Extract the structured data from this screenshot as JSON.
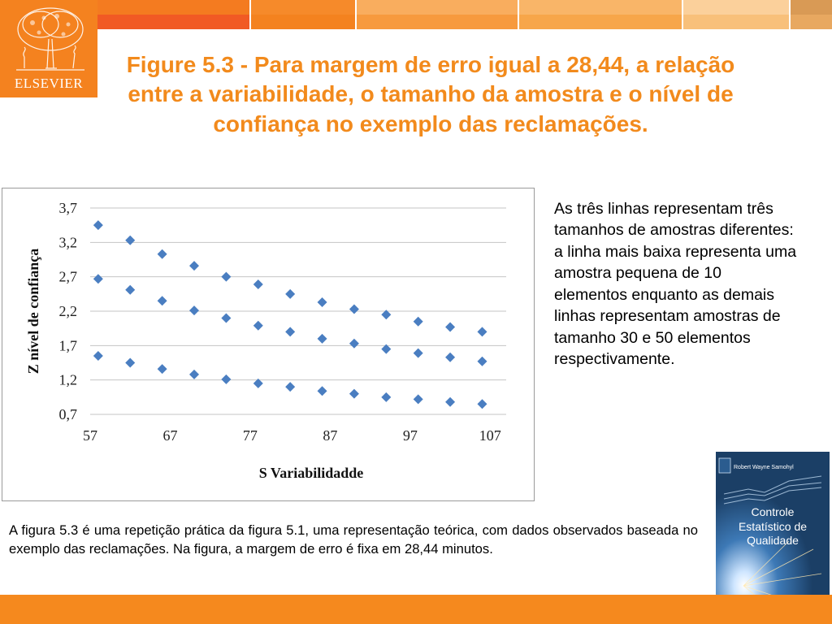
{
  "header": {
    "segments": [
      {
        "color": "#f15a24",
        "inner": "#f47b20"
      },
      {
        "color": "#f4821f",
        "inner": "#f68a2a"
      },
      {
        "color": "#f79a3e",
        "inner": "#f9ad5e"
      },
      {
        "color": "#f7a64a",
        "inner": "#f9b568"
      },
      {
        "color": "#f8c07a",
        "inner": "#fbd09b"
      },
      {
        "color": "#e8a860",
        "inner": "#d99a55"
      }
    ]
  },
  "logo": {
    "text": "ELSEVIER",
    "bg": "#f4821f"
  },
  "title": "Figure 5.3 - Para margem de erro igual a 28,44, a relação entre a variabilidade, o tamanho da amostra e o nível de confiança no exemplo das reclamações.",
  "chart_data": {
    "type": "scatter",
    "xlabel": "S Variabilidadde",
    "ylabel": "Z  nível de confiança",
    "xlim": [
      57,
      109
    ],
    "ylim": [
      0.7,
      3.7
    ],
    "xticks": [
      "57",
      "67",
      "77",
      "87",
      "97",
      "107"
    ],
    "yticks": [
      "0,7",
      "1,2",
      "1,7",
      "2,2",
      "2,7",
      "3,2",
      "3,7"
    ],
    "grid": "horizontal",
    "marker": "diamond",
    "color": "#4a7ec1",
    "x": [
      58,
      62,
      66,
      70,
      74,
      78,
      82,
      86,
      90,
      94,
      98,
      102,
      106
    ],
    "series": [
      {
        "values": [
          3.45,
          3.23,
          3.03,
          2.86,
          2.7,
          2.59,
          2.45,
          2.33,
          2.23,
          2.15,
          2.05,
          1.97,
          1.9
        ]
      },
      {
        "values": [
          2.67,
          2.51,
          2.35,
          2.21,
          2.1,
          1.99,
          1.9,
          1.8,
          1.73,
          1.65,
          1.59,
          1.53,
          1.47
        ]
      },
      {
        "values": [
          1.55,
          1.45,
          1.36,
          1.28,
          1.21,
          1.15,
          1.1,
          1.04,
          1.0,
          0.95,
          0.92,
          0.88,
          0.85
        ]
      }
    ]
  },
  "side_text": "As três linhas representam três tamanhos de amostras diferentes: a linha mais baixa representa uma amostra pequena de 10 elementos enquanto as demais linhas representam amostras de tamanho 30 e 50 elementos respectivamente.",
  "bottom_text": "A figura 5.3 é uma repetição prática da figura 5.1, uma representação teórica, com dados observados baseada no exemplo das reclamações. Na figura, a margem de erro é fixa em 28,44 minutos.",
  "book": {
    "author": "Robert Wayne Samohyl",
    "title_line1": "Controle",
    "title_line2": "Estatístico de",
    "title_line3": "Qualidade"
  },
  "footer": {
    "color": "#f5891e"
  }
}
